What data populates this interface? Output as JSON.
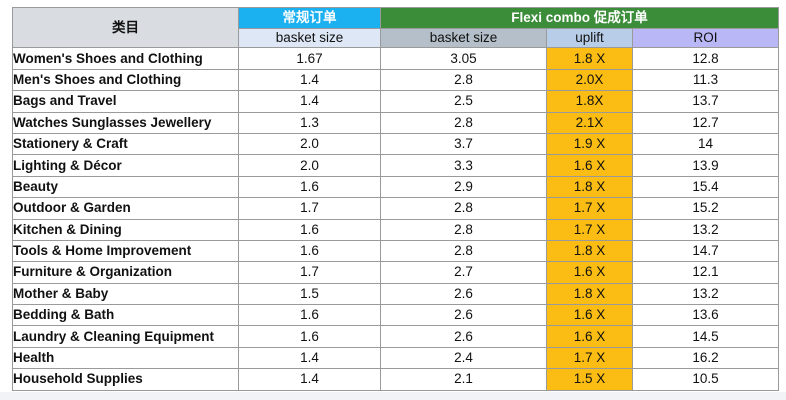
{
  "headers": {
    "category": "类目",
    "regular_group": "常规订单",
    "flexi_group": "Flexi combo 促成订单",
    "regular_basket": "basket size",
    "flexi_basket": "basket size",
    "uplift": "uplift",
    "roi": "ROI"
  },
  "colors": {
    "regular_header": "#1bb0ef",
    "flexi_header": "#3c8d3a",
    "uplift_fill": "#fbbd13",
    "roi_header": "#b9b7f5"
  },
  "rows": [
    {
      "category": "Women's Shoes and Clothing",
      "regular_basket": "1.67",
      "flexi_basket": "3.05",
      "uplift": "1.8 X",
      "roi": "12.8"
    },
    {
      "category": "Men's Shoes and Clothing",
      "regular_basket": "1.4",
      "flexi_basket": "2.8",
      "uplift": "2.0X",
      "roi": "11.3"
    },
    {
      "category": "Bags and Travel",
      "regular_basket": "1.4",
      "flexi_basket": "2.5",
      "uplift": "1.8X",
      "roi": "13.7"
    },
    {
      "category": "Watches Sunglasses Jewellery",
      "regular_basket": "1.3",
      "flexi_basket": "2.8",
      "uplift": "2.1X",
      "roi": "12.7"
    },
    {
      "category": "Stationery & Craft",
      "regular_basket": "2.0",
      "flexi_basket": "3.7",
      "uplift": "1.9 X",
      "roi": "14"
    },
    {
      "category": "Lighting & Décor",
      "regular_basket": "2.0",
      "flexi_basket": "3.3",
      "uplift": "1.6 X",
      "roi": "13.9"
    },
    {
      "category": "Beauty",
      "regular_basket": "1.6",
      "flexi_basket": "2.9",
      "uplift": "1.8 X",
      "roi": "15.4"
    },
    {
      "category": "Outdoor & Garden",
      "regular_basket": "1.7",
      "flexi_basket": "2.8",
      "uplift": "1.7 X",
      "roi": "15.2"
    },
    {
      "category": "Kitchen & Dining",
      "regular_basket": "1.6",
      "flexi_basket": "2.8",
      "uplift": "1.7 X",
      "roi": "13.2"
    },
    {
      "category": "Tools & Home Improvement",
      "regular_basket": "1.6",
      "flexi_basket": "2.8",
      "uplift": "1.8 X",
      "roi": "14.7"
    },
    {
      "category": "Furniture & Organization",
      "regular_basket": "1.7",
      "flexi_basket": "2.7",
      "uplift": "1.6 X",
      "roi": "12.1"
    },
    {
      "category": "Mother & Baby",
      "regular_basket": "1.5",
      "flexi_basket": "2.6",
      "uplift": "1.8 X",
      "roi": "13.2"
    },
    {
      "category": "Bedding & Bath",
      "regular_basket": "1.6",
      "flexi_basket": "2.6",
      "uplift": "1.6 X",
      "roi": "13.6"
    },
    {
      "category": "Laundry & Cleaning Equipment",
      "regular_basket": "1.6",
      "flexi_basket": "2.6",
      "uplift": "1.6 X",
      "roi": "14.5"
    },
    {
      "category": "Health",
      "regular_basket": "1.4",
      "flexi_basket": "2.4",
      "uplift": "1.7 X",
      "roi": "16.2"
    },
    {
      "category": "Household Supplies",
      "regular_basket": "1.4",
      "flexi_basket": "2.1",
      "uplift": "1.5 X",
      "roi": "10.5"
    }
  ]
}
